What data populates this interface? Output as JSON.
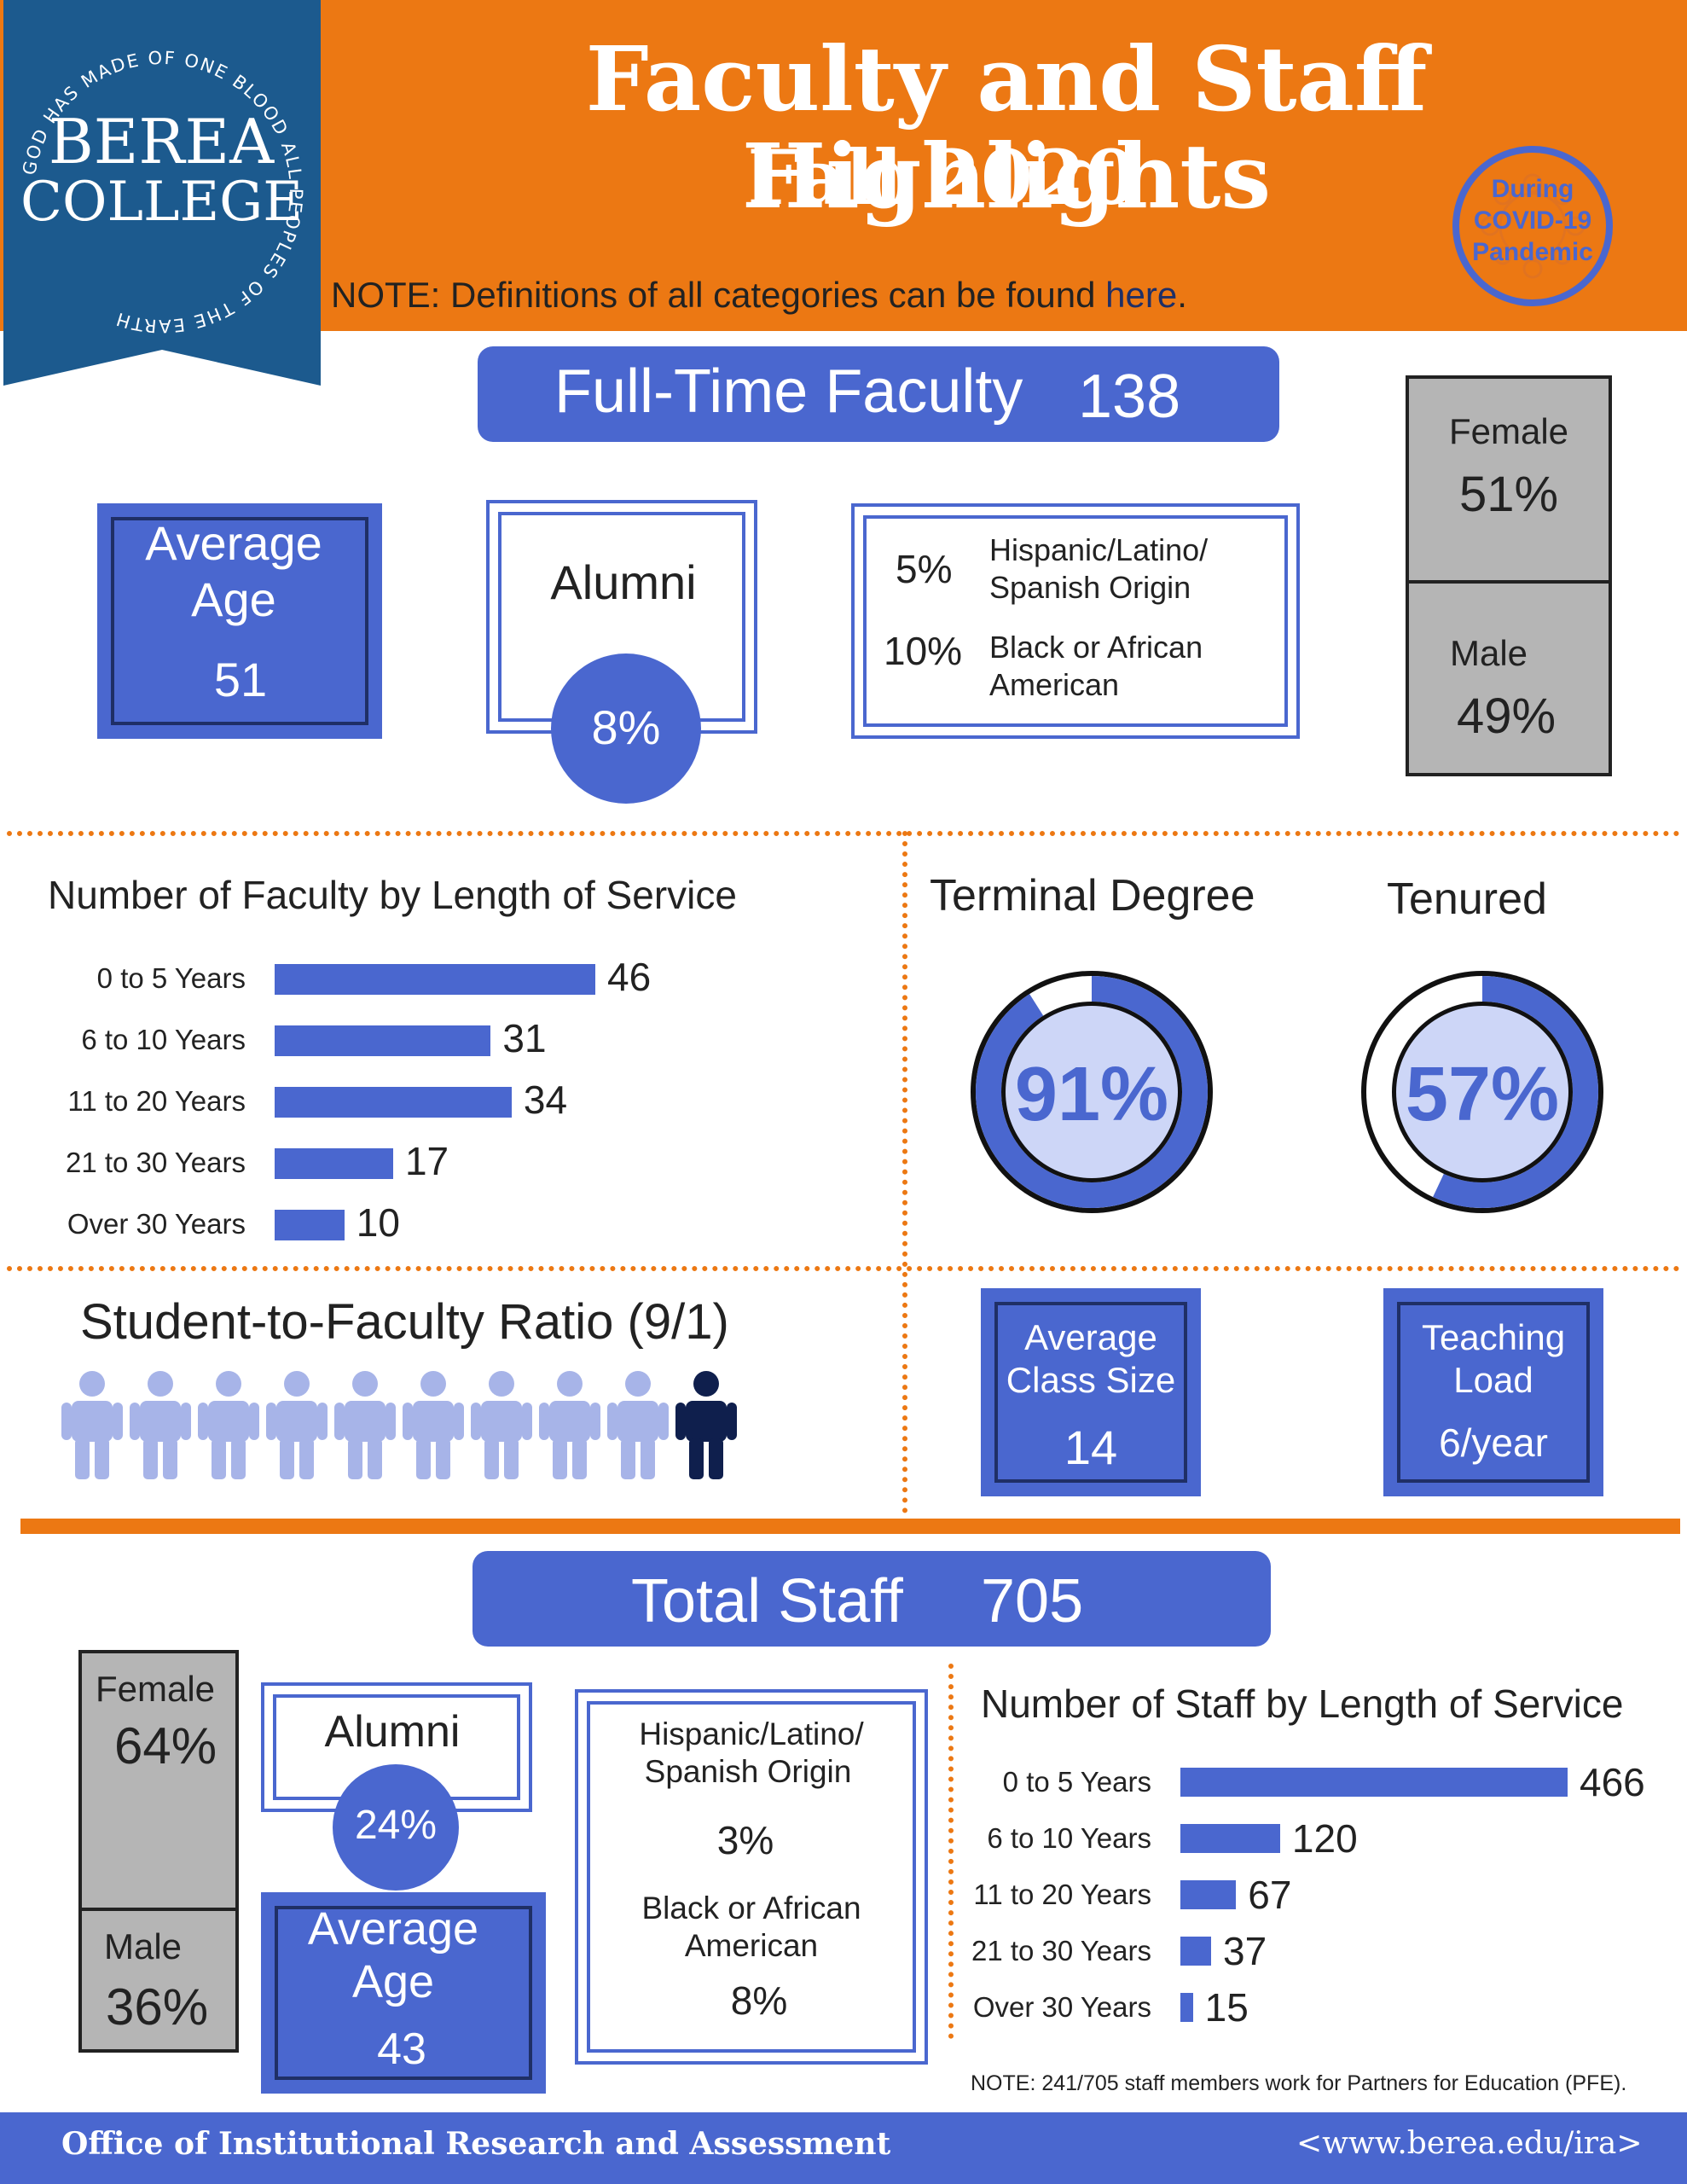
{
  "header": {
    "title": "Faculty and Staff Highlights",
    "subtitle": "Fall 2020",
    "note_prefix": "NOTE: Definitions of all categories can be found ",
    "note_link": "here",
    "note_suffix": ".",
    "badge_line1": "During",
    "badge_line2": "COVID-19",
    "badge_line3": "Pandemic",
    "logo_line1": "BEREA",
    "logo_line2": "COLLEGE",
    "logo_ring": "GOD HAS MADE OF ONE BLOOD ALL PEOPLES OF THE EARTH"
  },
  "faculty": {
    "banner_label": "Full-Time Faculty",
    "banner_value": "138",
    "avg_age_label_1": "Average",
    "avg_age_label_2": "Age",
    "avg_age_value": "51",
    "alumni_label": "Alumni",
    "alumni_value": "8%",
    "eth1_value": "5%",
    "eth1_label_1": "Hispanic/Latino/",
    "eth1_label_2": "Spanish Origin",
    "eth2_value": "10%",
    "eth2_label_1": "Black or African",
    "eth2_label_2": "American",
    "female_label": "Female",
    "female_value": "51%",
    "male_label": "Male",
    "male_value": "49%",
    "terminal_label": "Terminal Degree",
    "terminal_value": "91%",
    "tenured_label": "Tenured",
    "tenured_value": "57%",
    "ratio_label": "Student-to-Faculty Ratio (9/1)",
    "class_size_label_1": "Average",
    "class_size_label_2": "Class Size",
    "class_size_value": "14",
    "teaching_label_1": "Teaching",
    "teaching_label_2": "Load",
    "teaching_value": "6/year"
  },
  "staff": {
    "banner_label": "Total Staff",
    "banner_value": "705",
    "female_label": "Female",
    "female_value": "64%",
    "male_label": "Male",
    "male_value": "36%",
    "alumni_label": "Alumni",
    "alumni_value": "24%",
    "avg_age_label_1": "Average",
    "avg_age_label_2": "Age",
    "avg_age_value": "43",
    "eth1_label_1": "Hispanic/Latino/",
    "eth1_label_2": "Spanish Origin",
    "eth1_value": "3%",
    "eth2_label_1": "Black or African",
    "eth2_label_2": "American",
    "eth2_value": "8%",
    "note": "NOTE:  241/705 staff members work for Partners for Education (PFE)."
  },
  "footer": {
    "left": "Office of Institutional Research and Assessment",
    "right": "<www.berea.edu/ira>"
  },
  "colors": {
    "orange": "#ec7813",
    "blue": "#4a67cf",
    "dark_navy": "#1f2f66",
    "light_blue": "#cdd6f7",
    "person_light": "#a7b4e8",
    "person_dark": "#0f1f4d",
    "gray": "#b5b5b5",
    "logo_blue": "#1c5a8e"
  },
  "chart_data": [
    {
      "type": "bar",
      "title": "Number of Faculty by Length of Service",
      "categories": [
        "0 to 5 Years",
        "6 to 10 Years",
        "11 to 20 Years",
        "21 to 30 Years",
        "Over 30 Years"
      ],
      "values": [
        46,
        31,
        34,
        17,
        10
      ]
    },
    {
      "type": "bar",
      "title": "Number of Staff by Length of Service",
      "categories": [
        "0 to 5 Years",
        "6 to 10 Years",
        "11 to 20 Years",
        "21 to 30 Years",
        "Over 30 Years"
      ],
      "values": [
        466,
        120,
        67,
        37,
        15
      ]
    },
    {
      "type": "pie",
      "title": "Terminal Degree",
      "values": [
        91,
        9
      ]
    },
    {
      "type": "pie",
      "title": "Tenured",
      "values": [
        57,
        43
      ]
    },
    {
      "type": "bar",
      "title": "Student-to-Faculty Ratio (9/1)",
      "values": [
        9,
        1
      ]
    }
  ]
}
